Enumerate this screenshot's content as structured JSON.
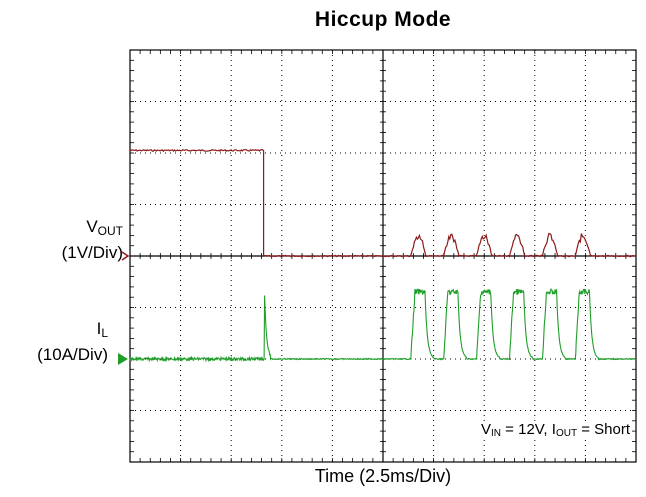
{
  "chart_data": {
    "type": "line",
    "title": "Hiccup Mode",
    "xlabel": "Time (2.5ms/Div)",
    "x_divisions": 10,
    "y_divisions": 8,
    "grid": true,
    "channels": [
      {
        "name_main": "V",
        "name_sub": "OUT",
        "scale": "(1V/Div)",
        "color": "#8b1a1a",
        "marker_color": "#8b1a1a",
        "events": {
          "level_div": 2.05,
          "drop_time_div": 2.65,
          "burst_times_div": [
            5.55,
            6.2,
            6.85,
            7.5,
            8.15,
            8.8
          ],
          "burst_height_div": 0.45
        }
      },
      {
        "name_main": "I",
        "name_sub": "L",
        "scale": "(10A/Div)",
        "color": "#1f9e2a",
        "marker_color": "#1f9e2a",
        "events": {
          "spike_time_div": 2.65,
          "spike_height_div": 1.6,
          "pulse_times_div": [
            5.55,
            6.2,
            6.85,
            7.5,
            8.15,
            8.8
          ],
          "pulse_height_div": 1.3
        }
      }
    ],
    "annotation": {
      "vin_main": "V",
      "vin_sub": "IN",
      "vin_val": " = 12V, ",
      "iout_main": "I",
      "iout_sub": "OUT",
      "iout_val": " = Short"
    }
  }
}
